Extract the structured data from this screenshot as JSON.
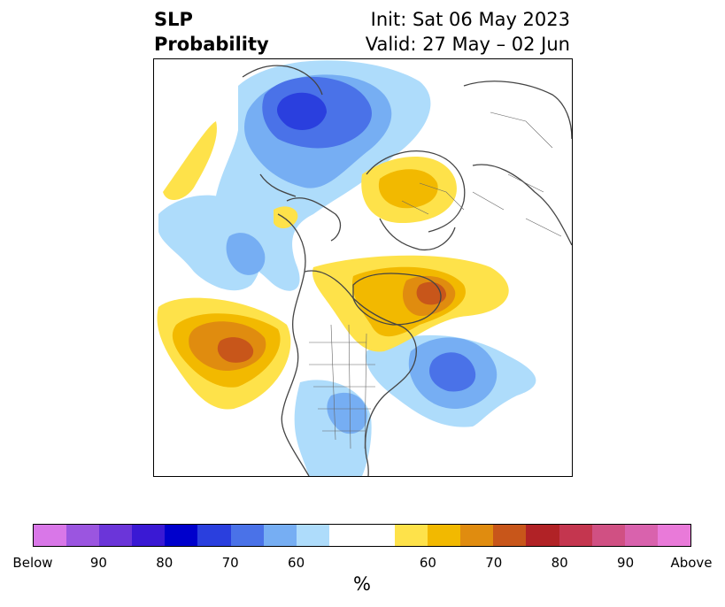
{
  "header": {
    "title_line1": "SLP",
    "title_line2": "Probability",
    "init": "Init: Sat 06 May 2023",
    "valid": "Valid: 27 May – 02 Jun"
  },
  "colorbar": {
    "below_colors": [
      "#d977e8",
      "#9b55e0",
      "#6b35d9",
      "#3a19d4",
      "#0000cc",
      "#2a3fde",
      "#4a72e8",
      "#76aef3",
      "#aedcfb"
    ],
    "neutral_color": "#ffffff",
    "above_colors": [
      "#fee24a",
      "#f2b900",
      "#e08c0f",
      "#c8561a",
      "#b12226",
      "#c4364f",
      "#d05083",
      "#d962ad",
      "#e97ad9"
    ],
    "tick_labels": [
      "Below",
      "90",
      "80",
      "70",
      "60",
      "60",
      "70",
      "80",
      "90",
      "Above"
    ],
    "unit": "%"
  },
  "legend_colors": {
    "blue_light": "#aedcfb",
    "blue_mid": "#76aef3",
    "blue_dark": "#4a72e8",
    "blue_deep": "#2a3fde",
    "yellow": "#fee24a",
    "gold": "#f2b900",
    "orange": "#e08c0f",
    "rust": "#c8561a",
    "coastline": "#444444"
  }
}
